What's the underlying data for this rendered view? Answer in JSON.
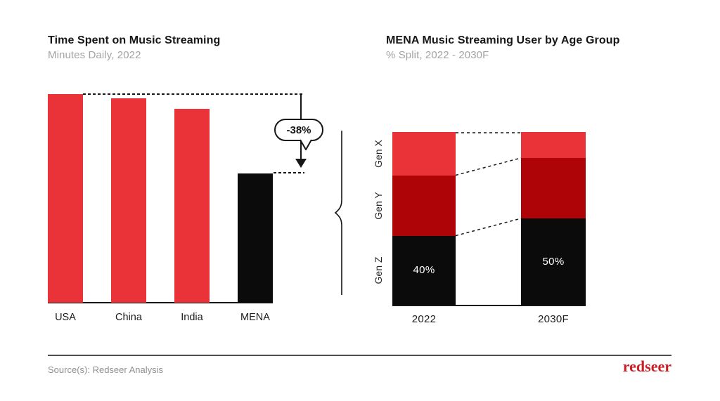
{
  "colors": {
    "accent_red": "#e93338",
    "dark_red": "#ae0408",
    "black_bar": "#0b0b0b",
    "ink": "#161616",
    "subtitle_gray": "#a3a3a3",
    "source_gray": "#8f8f8f",
    "divider_gray": "#4d4d4d",
    "logo_red": "#cb1f26",
    "data_label_white": "#ffffff"
  },
  "chart_data": [
    {
      "type": "bar",
      "title": "Time Spent on Music Streaming",
      "subtitle": "Minutes Daily, 2022",
      "categories": [
        "USA",
        "China",
        "India",
        "MENA"
      ],
      "values_relative_index": [
        100,
        98,
        93,
        62
      ],
      "value_note": "no numeric axis shown; heights relative with USA = 100",
      "bar_colors": [
        "#e93338",
        "#e93338",
        "#e93338",
        "#0b0b0b"
      ],
      "annotation": {
        "label": "-38%",
        "from": "benchmark level (USA/China/India)",
        "to": "MENA"
      },
      "grid": false,
      "legend": false
    },
    {
      "type": "stacked-bar",
      "title": "MENA Music Streaming User by Age Group",
      "subtitle": "% Split, 2022 - 2030F",
      "categories": [
        "2022",
        "2030F"
      ],
      "series": [
        {
          "name": "Gen Z",
          "color": "#0b0b0b",
          "values": [
            40,
            50
          ],
          "data_labels": [
            "40%",
            "50%"
          ],
          "label_color": "#ffffff"
        },
        {
          "name": "Gen Y",
          "color": "#ae0408",
          "values": [
            35,
            35
          ],
          "data_labels": [
            "",
            ""
          ]
        },
        {
          "name": "Gen X",
          "color": "#e93338",
          "values": [
            25,
            15
          ],
          "data_labels": [
            "",
            ""
          ]
        }
      ],
      "stack_order_bottom_to_top": [
        "Gen Z",
        "Gen Y",
        "Gen X"
      ],
      "ylim": [
        0,
        100
      ],
      "grid": false,
      "legend": "rotated category labels on left axis",
      "connectors": "dashed lines join segment boundaries between bars"
    }
  ],
  "footer": {
    "source": "Source(s): Redseer Analysis",
    "logo_text": "redseer"
  }
}
